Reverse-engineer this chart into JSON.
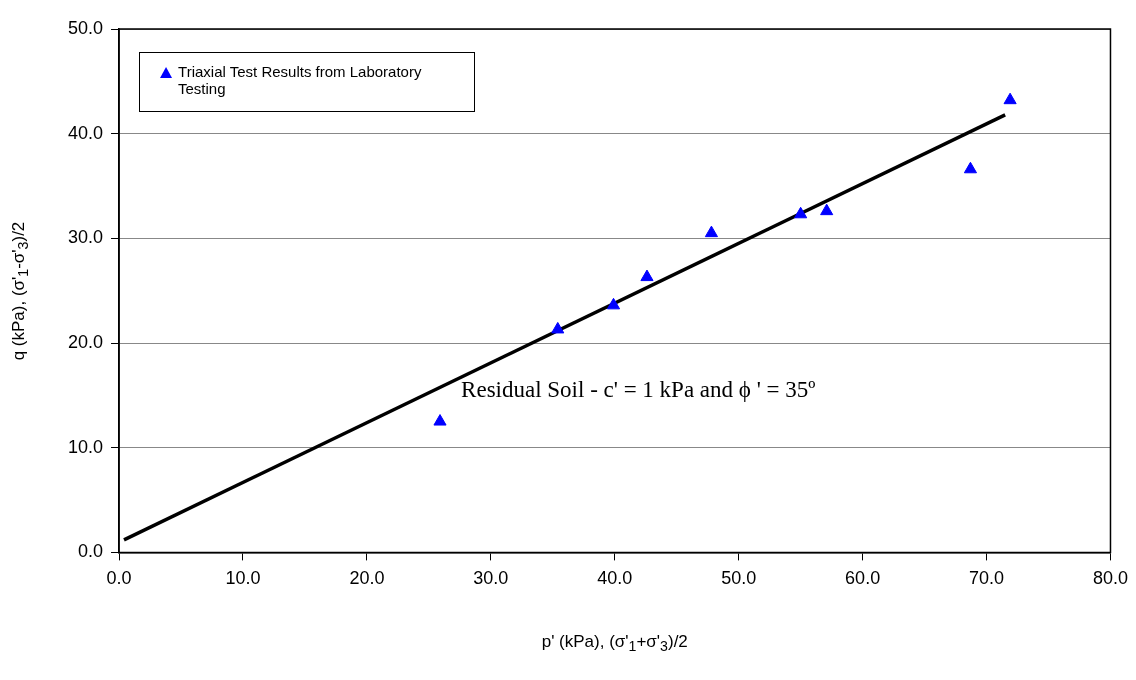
{
  "chart_data": {
    "type": "scatter",
    "xlabel": "p' (kPa), (σ'$_{1}$+σ'$_{3}$)/2",
    "ylabel": "q (kPa), (σ'$_{1}$-σ'$_{3}$)/2",
    "series": [
      {
        "name": "Triaxial Test Results from Laboratory Testing",
        "color": "#0000ff",
        "marker": "triangle",
        "x": [
          25.9,
          35.4,
          39.9,
          42.6,
          47.8,
          55.0,
          57.1,
          68.7,
          71.9
        ],
        "values": [
          12.5,
          21.3,
          23.6,
          26.3,
          30.5,
          32.3,
          32.6,
          36.6,
          43.2
        ]
      },
      {
        "type": "line",
        "color": "#000000",
        "marker": "none",
        "line_style": "solid",
        "x": [
          0.4,
          71.5
        ],
        "values": [
          1.2,
          41.8
        ]
      }
    ],
    "xlim": [
      0,
      80
    ],
    "ylim": [
      0,
      50
    ],
    "xticks": [
      {
        "value": 0,
        "label": "0.0"
      },
      {
        "value": 10,
        "label": "10.0"
      },
      {
        "value": 20,
        "label": "20.0"
      },
      {
        "value": 30,
        "label": "30.0"
      },
      {
        "value": 40,
        "label": "40.0"
      },
      {
        "value": 50,
        "label": "50.0"
      },
      {
        "value": 60,
        "label": "60.0"
      },
      {
        "value": 70,
        "label": "70.0"
      },
      {
        "value": 80,
        "label": "80.0"
      }
    ],
    "yticks": [
      {
        "value": 0,
        "label": "0.0"
      },
      {
        "value": 10,
        "label": "10.0"
      },
      {
        "value": 20,
        "label": "20.0"
      },
      {
        "value": 30,
        "label": "30.0"
      },
      {
        "value": 40,
        "label": "40.0"
      },
      {
        "value": 50,
        "label": "50.0"
      }
    ],
    "grid": "y",
    "legend": "top left",
    "annotations": [
      "Residual Soil - c' = 1 kPa and  ϕ ' = 35º"
    ]
  }
}
